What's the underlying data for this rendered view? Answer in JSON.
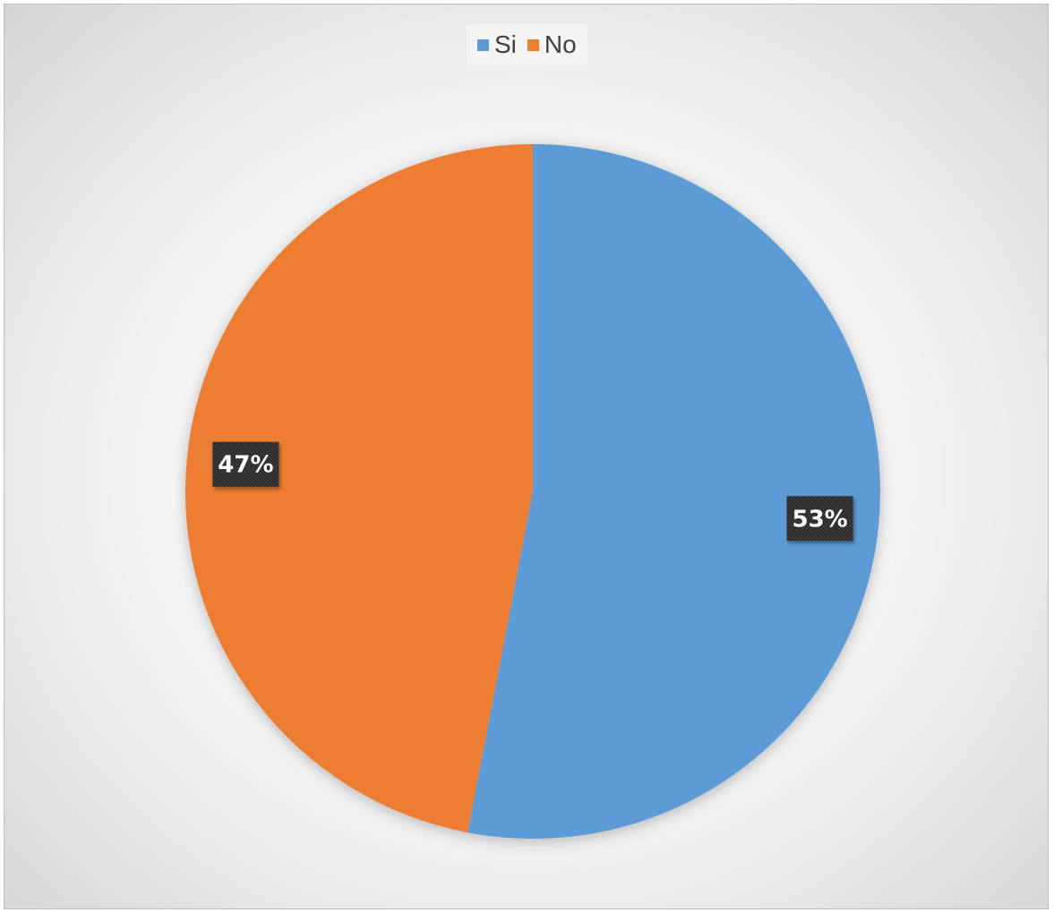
{
  "chart_data": {
    "type": "pie",
    "title": "",
    "legend_position": "top",
    "categories": [
      "Si",
      "No"
    ],
    "values": [
      53,
      47
    ],
    "labels": [
      "53%",
      "47%"
    ],
    "colors": [
      "#5b9bd5",
      "#ed7d31"
    ]
  }
}
